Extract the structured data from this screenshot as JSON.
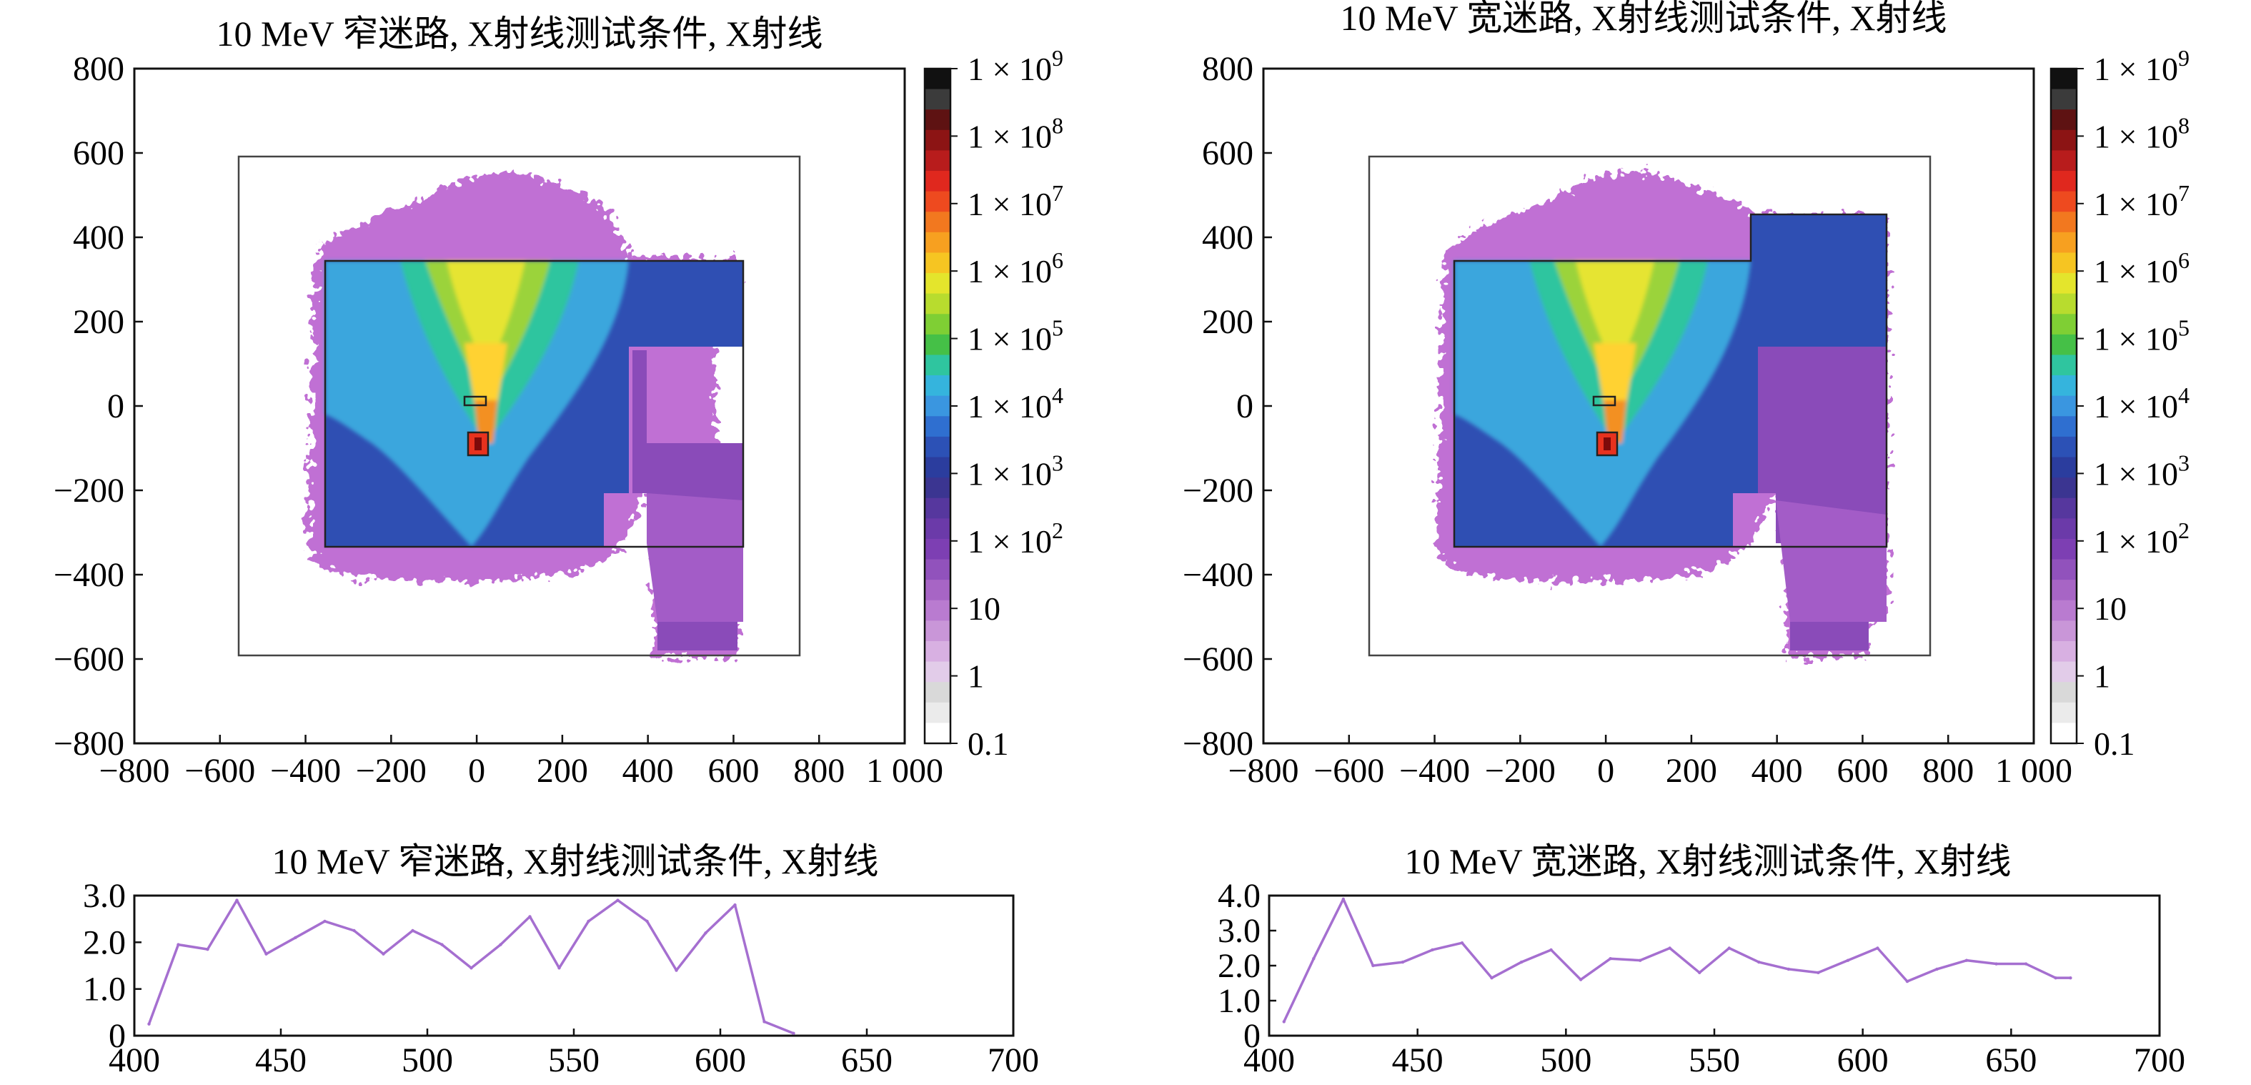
{
  "chart_data": [
    {
      "type": "heatmap",
      "title": "10 MeV 窄迷路, X射线测试条件, X射线",
      "xlim": [
        -800,
        1000
      ],
      "ylim": [
        -800,
        800
      ],
      "x_ticks": [
        "−800",
        "−600",
        "−400",
        "−200",
        "0",
        "200",
        "400",
        "600",
        "800",
        "1 000"
      ],
      "y_ticks": [
        "800",
        "600",
        "400",
        "200",
        "0",
        "−200",
        "−400",
        "−600",
        "−800"
      ],
      "colorbar_labels": [
        "1 × 10",
        "1 × 10",
        "1 × 10",
        "1 × 10",
        "1 × 10",
        "1 × 10",
        "1 × 10",
        "1 × 10",
        "10",
        "1",
        "0.1"
      ],
      "colorbar_exponents": [
        "9",
        "8",
        "7",
        "6",
        "5",
        "4",
        "3",
        "2",
        "",
        "",
        ""
      ],
      "scale": "log",
      "source_xy": [
        0,
        -100
      ],
      "maze": "narrow"
    },
    {
      "type": "heatmap",
      "title": "10 MeV 宽迷路, X射线测试条件, X射线",
      "xlim": [
        -800,
        1000
      ],
      "ylim": [
        -800,
        800
      ],
      "x_ticks": [
        "−800",
        "−600",
        "−400",
        "−200",
        "0",
        "200",
        "400",
        "600",
        "800",
        "1 000"
      ],
      "y_ticks": [
        "800",
        "600",
        "400",
        "200",
        "0",
        "−200",
        "−400",
        "−600",
        "−800"
      ],
      "colorbar_labels": [
        "1 × 10",
        "1 × 10",
        "1 × 10",
        "1 × 10",
        "1 × 10",
        "1 × 10",
        "1 × 10",
        "1 × 10",
        "10",
        "1",
        "0.1"
      ],
      "colorbar_exponents": [
        "9",
        "8",
        "7",
        "6",
        "5",
        "4",
        "3",
        "2",
        "",
        "",
        ""
      ],
      "scale": "log",
      "source_xy": [
        0,
        -100
      ],
      "maze": "wide"
    },
    {
      "type": "line",
      "title": "10 MeV 窄迷路, X射线测试条件, X射线",
      "xlim": [
        400,
        700
      ],
      "ylim": [
        0,
        3
      ],
      "x_ticks": [
        "400",
        "450",
        "500",
        "550",
        "600",
        "650",
        "700"
      ],
      "y_ticks": [
        "3.0",
        "2.0",
        "1.0",
        "0"
      ],
      "color": "#a56fd0",
      "series": [
        {
          "x": [
            405,
            415,
            425,
            435,
            445,
            455,
            465,
            475,
            485,
            495,
            505,
            515,
            525,
            535,
            545,
            555,
            565,
            575,
            585,
            595,
            605,
            615,
            625
          ],
          "values": [
            0.25,
            1.95,
            1.85,
            2.9,
            1.75,
            2.1,
            2.45,
            2.25,
            1.75,
            2.25,
            1.95,
            1.45,
            1.95,
            2.55,
            1.45,
            2.45,
            2.9,
            2.45,
            1.4,
            2.2,
            2.8,
            0.3,
            0.05
          ]
        }
      ]
    },
    {
      "type": "line",
      "title": "10 MeV 宽迷路, X射线测试条件, X射线",
      "xlim": [
        400,
        700
      ],
      "ylim": [
        0,
        4
      ],
      "x_ticks": [
        "400",
        "450",
        "500",
        "550",
        "600",
        "650",
        "700"
      ],
      "y_ticks": [
        "4.0",
        "3.0",
        "2.0",
        "1.0",
        "0"
      ],
      "color": "#a56fd0",
      "series": [
        {
          "x": [
            405,
            415,
            425,
            435,
            445,
            455,
            465,
            475,
            485,
            495,
            505,
            515,
            525,
            535,
            545,
            555,
            565,
            575,
            585,
            595,
            605,
            615,
            625,
            635,
            645,
            655,
            665,
            670
          ],
          "values": [
            0.4,
            2.2,
            3.9,
            2.0,
            2.1,
            2.45,
            2.65,
            1.65,
            2.1,
            2.45,
            1.6,
            2.2,
            2.15,
            2.5,
            1.8,
            2.5,
            2.1,
            1.9,
            1.8,
            2.15,
            2.5,
            1.55,
            1.9,
            2.15,
            2.05,
            2.05,
            1.65,
            1.65
          ]
        }
      ]
    }
  ]
}
